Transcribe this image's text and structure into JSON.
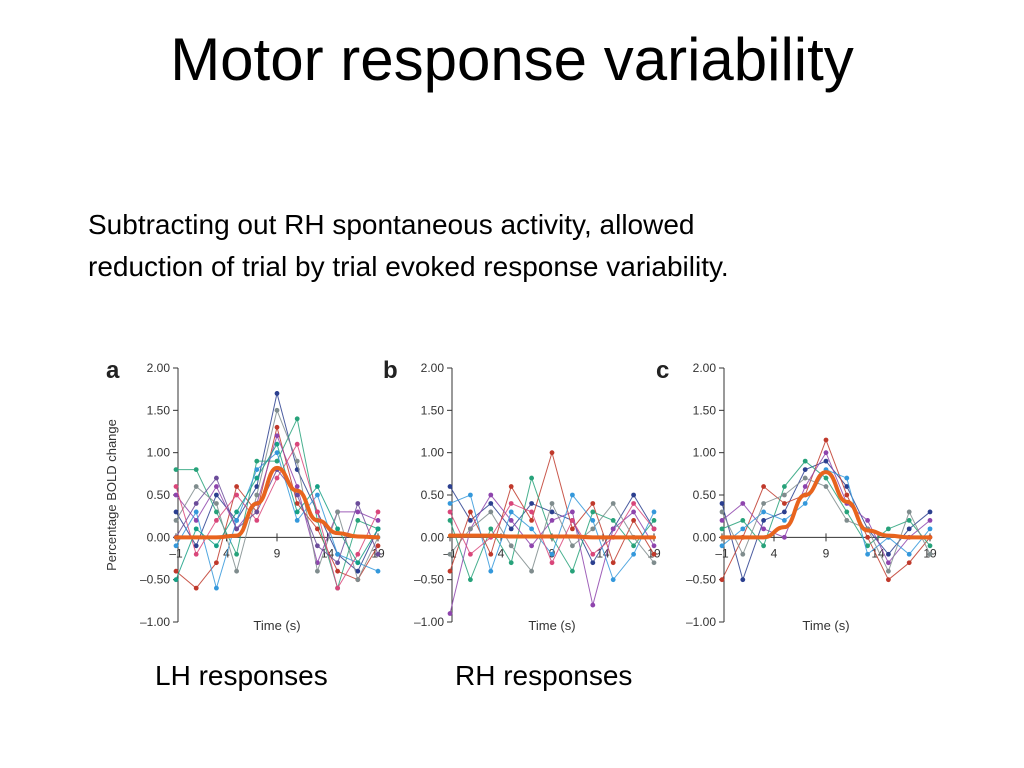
{
  "slide": {
    "title": "Motor response variability",
    "body_lines": [
      "Subtracting out RH spontaneous activity, allowed",
      "reduction of trial by trial evoked response variability."
    ],
    "captions": {
      "lh": "LH responses",
      "rh": "RH responses"
    }
  },
  "chart_data": [
    {
      "type": "line",
      "panel_label": "a",
      "xlabel": "Time (s)",
      "ylabel": "Percentage BOLD change",
      "x_ticks": [
        "–1",
        "4",
        "9",
        "14",
        "19"
      ],
      "y_ticks": [
        "2.00",
        "1.50",
        "1.00",
        "0.50",
        "0.00",
        "–0.50",
        "–1.00"
      ],
      "xlim": [
        -1,
        19
      ],
      "ylim": [
        -1,
        2
      ],
      "x": [
        -1,
        1,
        3,
        5,
        7,
        9,
        11,
        13,
        15,
        17,
        19
      ],
      "mean_series": {
        "color": "#e8641e",
        "values": [
          0,
          0,
          0,
          0.02,
          0.4,
          0.82,
          0.55,
          0.2,
          0.05,
          0.01,
          0
        ]
      },
      "trials": [
        [
          0.3,
          -0.1,
          0.5,
          0.2,
          0.6,
          1.7,
          0.8,
          0.3,
          -0.2,
          -0.4,
          0.1
        ],
        [
          -0.4,
          -0.6,
          -0.3,
          0.6,
          0.3,
          1.3,
          0.4,
          0.1,
          -0.4,
          -0.5,
          -0.1
        ],
        [
          0.8,
          0.8,
          0.3,
          -0.2,
          0.9,
          0.9,
          1.4,
          0.2,
          -0.6,
          0.2,
          0.1
        ],
        [
          0.5,
          0.2,
          0.6,
          0.1,
          0.4,
          1.2,
          0.6,
          -0.3,
          0.3,
          0.3,
          0.2
        ],
        [
          -0.1,
          0.3,
          -0.6,
          0.2,
          0.8,
          1.0,
          0.2,
          0.5,
          -0.2,
          -0.3,
          -0.4
        ],
        [
          0.2,
          0.6,
          0.4,
          -0.4,
          0.5,
          1.5,
          0.9,
          -0.4,
          0.3,
          -0.5,
          0.0
        ],
        [
          0.6,
          -0.2,
          0.2,
          0.5,
          0.2,
          0.7,
          1.1,
          0.3,
          -0.6,
          -0.2,
          0.3
        ],
        [
          -0.5,
          0.1,
          -0.1,
          0.3,
          0.7,
          1.1,
          0.3,
          0.6,
          0.1,
          -0.3,
          0.1
        ],
        [
          0.0,
          0.4,
          0.7,
          0.1,
          0.3,
          0.8,
          0.5,
          -0.1,
          -0.3,
          0.4,
          -0.2
        ]
      ]
    },
    {
      "type": "line",
      "panel_label": "b",
      "xlabel": "Time (s)",
      "ylabel": "",
      "x_ticks": [
        "–1",
        "4",
        "9",
        "14",
        "19"
      ],
      "y_ticks": [
        "2.00",
        "1.50",
        "1.00",
        "0.50",
        "0.00",
        "–0.50",
        "–1.00"
      ],
      "xlim": [
        -1,
        19
      ],
      "ylim": [
        -1,
        2
      ],
      "x": [
        -1,
        1,
        3,
        5,
        7,
        9,
        11,
        13,
        15,
        17,
        19
      ],
      "mean_series": {
        "color": "#e8641e",
        "values": [
          0.02,
          0.02,
          0.02,
          0.01,
          0.01,
          0.01,
          0.01,
          0.0,
          0.0,
          0.0,
          0.0
        ]
      },
      "trials": [
        [
          0.6,
          0.2,
          0.4,
          0.1,
          0.4,
          0.3,
          0.2,
          -0.3,
          0.1,
          0.5,
          0.1
        ],
        [
          -0.4,
          0.3,
          -0.2,
          0.6,
          0.2,
          1.0,
          0.1,
          0.4,
          -0.3,
          0.2,
          -0.2
        ],
        [
          0.2,
          -0.5,
          0.1,
          -0.3,
          0.7,
          0.0,
          -0.4,
          0.3,
          0.2,
          -0.1,
          0.2
        ],
        [
          -0.9,
          0.1,
          0.5,
          0.2,
          -0.1,
          0.2,
          0.3,
          -0.8,
          0.1,
          0.3,
          -0.1
        ],
        [
          0.4,
          0.5,
          -0.4,
          0.3,
          0.1,
          -0.2,
          0.5,
          0.2,
          -0.5,
          -0.2,
          0.3
        ],
        [
          -0.2,
          0.1,
          0.3,
          -0.1,
          -0.4,
          0.4,
          -0.1,
          0.1,
          0.4,
          0.0,
          -0.3
        ],
        [
          0.3,
          -0.2,
          0.0,
          0.4,
          0.3,
          -0.3,
          0.2,
          -0.2,
          0.0,
          0.4,
          0.1
        ]
      ]
    },
    {
      "type": "line",
      "panel_label": "c",
      "xlabel": "Time (s)",
      "ylabel": "",
      "x_ticks": [
        "–1",
        "4",
        "9",
        "14",
        "19"
      ],
      "y_ticks": [
        "2.00",
        "1.50",
        "1.00",
        "0.50",
        "0.00",
        "–0.50",
        "–1.00"
      ],
      "xlim": [
        -1,
        19
      ],
      "ylim": [
        -1,
        2
      ],
      "x": [
        -1,
        1,
        3,
        5,
        7,
        9,
        11,
        13,
        15,
        17,
        19
      ],
      "mean_series": {
        "color": "#e8641e",
        "values": [
          0,
          0,
          0,
          0.12,
          0.5,
          0.77,
          0.42,
          0.08,
          0.02,
          0,
          0
        ]
      },
      "trials": [
        [
          0.4,
          -0.5,
          0.2,
          0.3,
          0.8,
          0.9,
          0.6,
          0.1,
          -0.2,
          0.1,
          0.3
        ],
        [
          -0.5,
          0.0,
          0.6,
          0.4,
          0.5,
          1.15,
          0.5,
          0.0,
          -0.5,
          -0.3,
          0.0
        ],
        [
          0.1,
          0.2,
          -0.1,
          0.6,
          0.9,
          0.7,
          0.3,
          -0.1,
          0.1,
          0.2,
          -0.1
        ],
        [
          0.2,
          0.4,
          0.1,
          0.0,
          0.6,
          1.0,
          0.4,
          0.2,
          -0.3,
          0.0,
          0.2
        ],
        [
          -0.1,
          0.1,
          0.3,
          0.2,
          0.4,
          0.8,
          0.7,
          -0.2,
          0.0,
          -0.2,
          0.1
        ],
        [
          0.3,
          -0.2,
          0.4,
          0.5,
          0.7,
          0.6,
          0.2,
          0.1,
          -0.4,
          0.3,
          -0.2
        ]
      ]
    }
  ],
  "colors": {
    "mean_line": "#e8641e",
    "trial_palette": [
      "#2b3f8f",
      "#c0392b",
      "#27a27a",
      "#8e44ad",
      "#3498db",
      "#7f8c8d",
      "#d9467a",
      "#16a085",
      "#6b4c9a"
    ]
  }
}
